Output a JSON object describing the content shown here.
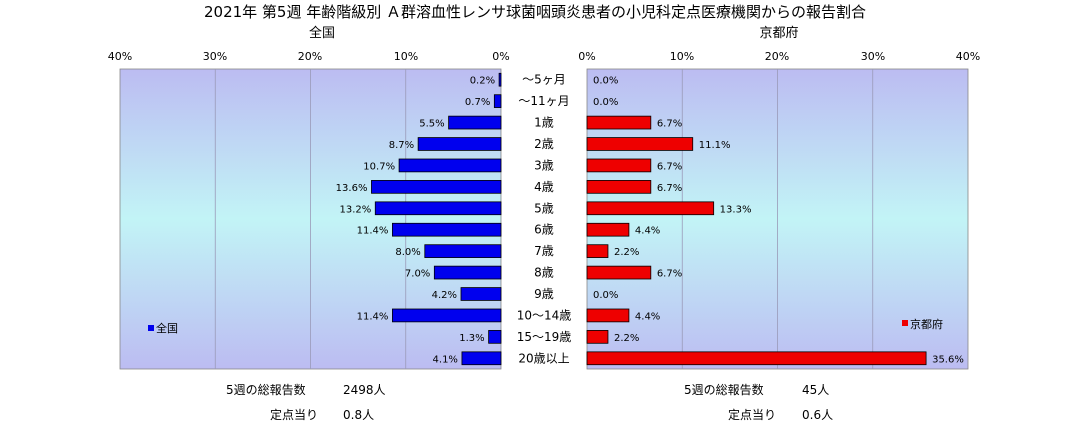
{
  "chart_data": {
    "type": "bar",
    "title": "2021年 第5週 年齢階級別 Ａ群溶血性レンサ球菌咽頭炎患者の小児科定点医療機関からの報告割合",
    "categories": [
      "～5ヶ月",
      "～11ヶ月",
      "1歳",
      "2歳",
      "3歳",
      "4歳",
      "5歳",
      "6歳",
      "7歳",
      "8歳",
      "9歳",
      "10～14歳",
      "15～19歳",
      "20歳以上"
    ],
    "xlim": [
      0,
      40
    ],
    "ticks": [
      "40%",
      "30%",
      "20%",
      "10%",
      "0%"
    ],
    "ticks_right": [
      "0%",
      "10%",
      "20%",
      "30%",
      "40%"
    ],
    "panels": [
      {
        "name": "全国",
        "legend": "全国",
        "color": "#0000ee",
        "values": [
          0.2,
          0.7,
          5.5,
          8.7,
          10.7,
          13.6,
          13.2,
          11.4,
          8.0,
          7.0,
          4.2,
          11.4,
          1.3,
          4.1
        ],
        "value_labels": [
          "0.2%",
          "0.7%",
          "5.5%",
          "8.7%",
          "10.7%",
          "13.6%",
          "13.2%",
          "11.4%",
          "8.0%",
          "7.0%",
          "4.2%",
          "11.4%",
          "1.3%",
          "4.1%"
        ],
        "total_label": "5週の総報告数",
        "total_value": "2498人",
        "per_label": "定点当り",
        "per_value": "0.8人"
      },
      {
        "name": "京都府",
        "legend": "京都府",
        "color": "#ee0000",
        "values": [
          0.0,
          0.0,
          6.7,
          11.1,
          6.7,
          6.7,
          13.3,
          4.4,
          2.2,
          6.7,
          0.0,
          4.4,
          2.2,
          35.6
        ],
        "value_labels": [
          "0.0%",
          "0.0%",
          "6.7%",
          "11.1%",
          "6.7%",
          "6.7%",
          "13.3%",
          "4.4%",
          "2.2%",
          "6.7%",
          "0.0%",
          "4.4%",
          "2.2%",
          "35.6%"
        ],
        "total_label": "5週の総報告数",
        "total_value": "45人",
        "per_label": "定点当り",
        "per_value": "0.6人"
      }
    ]
  }
}
